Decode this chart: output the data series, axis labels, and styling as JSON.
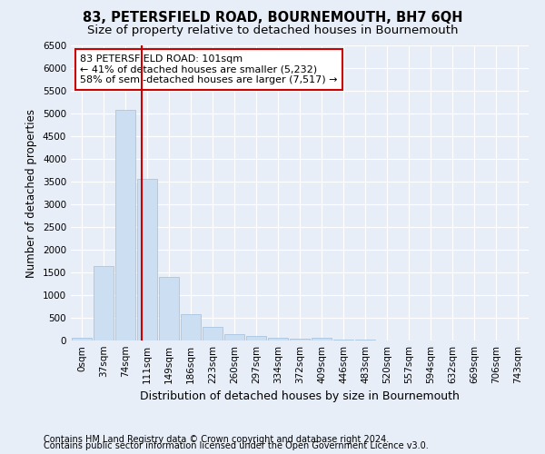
{
  "title": "83, PETERSFIELD ROAD, BOURNEMOUTH, BH7 6QH",
  "subtitle": "Size of property relative to detached houses in Bournemouth",
  "xlabel": "Distribution of detached houses by size in Bournemouth",
  "ylabel": "Number of detached properties",
  "footnote1": "Contains HM Land Registry data © Crown copyright and database right 2024.",
  "footnote2": "Contains public sector information licensed under the Open Government Licence v3.0.",
  "bar_labels": [
    "0sqm",
    "37sqm",
    "74sqm",
    "111sqm",
    "149sqm",
    "186sqm",
    "223sqm",
    "260sqm",
    "297sqm",
    "334sqm",
    "372sqm",
    "409sqm",
    "446sqm",
    "483sqm",
    "520sqm",
    "557sqm",
    "594sqm",
    "632sqm",
    "669sqm",
    "706sqm",
    "743sqm"
  ],
  "bar_values": [
    65,
    1640,
    5080,
    3570,
    1410,
    590,
    295,
    150,
    105,
    70,
    45,
    70,
    30,
    15,
    10,
    5,
    5,
    3,
    2,
    2,
    2
  ],
  "bar_color": "#ccdff2",
  "bar_edge_color": "#a0bedd",
  "ylim": [
    0,
    6500
  ],
  "yticks": [
    0,
    500,
    1000,
    1500,
    2000,
    2500,
    3000,
    3500,
    4000,
    4500,
    5000,
    5500,
    6000,
    6500
  ],
  "vline_x": 2.73,
  "vline_color": "#cc0000",
  "annotation_text": "83 PETERSFIELD ROAD: 101sqm\n← 41% of detached houses are smaller (5,232)\n58% of semi-detached houses are larger (7,517) →",
  "annotation_box_color": "#ffffff",
  "annotation_box_edge": "#cc0000",
  "bg_color": "#e8eef8",
  "plot_bg_color": "#e8eef8",
  "grid_color": "#ffffff",
  "title_fontsize": 10.5,
  "subtitle_fontsize": 9.5,
  "xlabel_fontsize": 9,
  "ylabel_fontsize": 8.5,
  "tick_fontsize": 7.5,
  "annotation_fontsize": 8,
  "footnote_fontsize": 7
}
